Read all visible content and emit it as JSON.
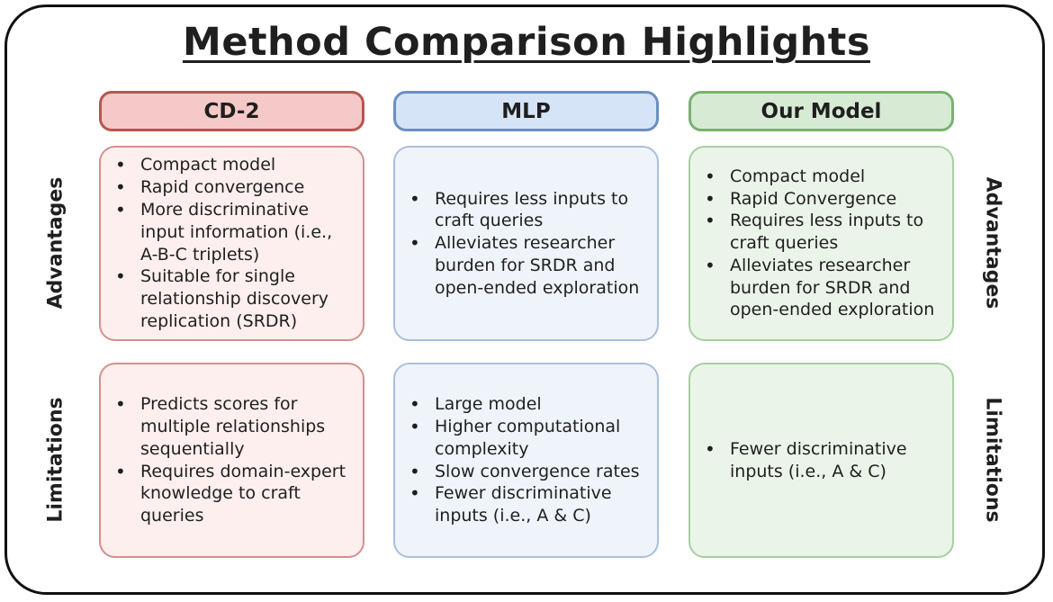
{
  "title": "Method Comparison Highlights",
  "row_labels": {
    "advantages_left": "Advantages",
    "limitations_left": "Limitations",
    "advantages_right": "Advantages",
    "limitations_right": "Limitations"
  },
  "colors": {
    "cd2_header_bg": "#f5c9c8",
    "cd2_border": "#b9544f",
    "cd2_card_bg": "#fcefee",
    "mlp_header_bg": "#d6e4f7",
    "mlp_border": "#6b8fc2",
    "mlp_card_bg": "#eff4fa",
    "our_header_bg": "#d7ebd4",
    "our_border": "#7ab16f",
    "our_card_bg": "#ebf4e9"
  },
  "columns": [
    {
      "header": "CD-2",
      "advantages": [
        "Compact model",
        "Rapid convergence",
        "More discriminative input information (i.e., A-B-C triplets)",
        "Suitable for single relationship discovery replication (SRDR)"
      ],
      "limitations": [
        "Predicts scores for multiple relationships sequentially",
        "Requires domain-expert knowledge to craft queries"
      ]
    },
    {
      "header": "MLP",
      "advantages": [
        "Requires less inputs to craft queries",
        "Alleviates researcher burden for SRDR and open-ended exploration"
      ],
      "limitations": [
        "Large model",
        "Higher computational complexity",
        "Slow convergence rates",
        "Fewer discriminative inputs (i.e., A & C)"
      ]
    },
    {
      "header": "Our Model",
      "advantages": [
        "Compact model",
        "Rapid Convergence",
        "Requires less inputs to craft queries",
        "Alleviates researcher burden for SRDR and open-ended exploration"
      ],
      "limitations": [
        "Fewer discriminative inputs (i.e., A & C)"
      ]
    }
  ]
}
